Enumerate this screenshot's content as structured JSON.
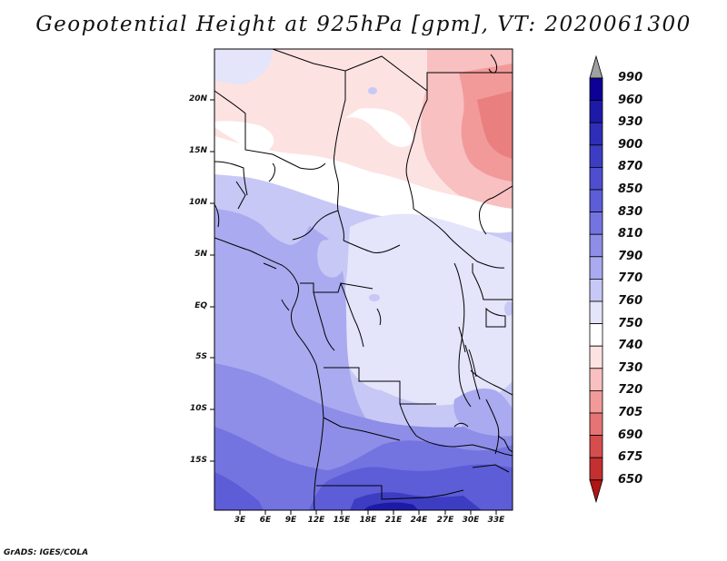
{
  "title": "Geopotential Height at 925hPa [gpm], VT: 2020061300",
  "footer": "GrADS: IGES/COLA",
  "map": {
    "lat_labels": [
      "20N",
      "15N",
      "10N",
      "5N",
      "EQ",
      "5S",
      "10S",
      "15S"
    ],
    "lon_labels": [
      "3E",
      "6E",
      "9E",
      "12E",
      "15E",
      "18E",
      "21E",
      "24E",
      "27E",
      "30E",
      "33E"
    ]
  },
  "colorbar": {
    "levels": [
      "990",
      "960",
      "930",
      "900",
      "870",
      "850",
      "830",
      "810",
      "790",
      "770",
      "760",
      "750",
      "740",
      "730",
      "720",
      "705",
      "690",
      "675",
      "650"
    ],
    "colors": [
      "#0c0096",
      "#1d1aa8",
      "#2e2eb8",
      "#3d3dc4",
      "#4e4ecf",
      "#5d5dd8",
      "#7474e0",
      "#8e8ee8",
      "#aaaaf0",
      "#c8c8f6",
      "#e4e4fb",
      "#ffffff",
      "#fde2e2",
      "#f8c0c0",
      "#f29a9a",
      "#e77474",
      "#d64d4d",
      "#c42f2f",
      "#b01414",
      "#9a0000"
    ],
    "triangle_top_color": "#a0a0a0",
    "triangle_bottom_color": "#b01414"
  },
  "colors": {
    "coastline": "#000000",
    "frame": "#000000"
  }
}
